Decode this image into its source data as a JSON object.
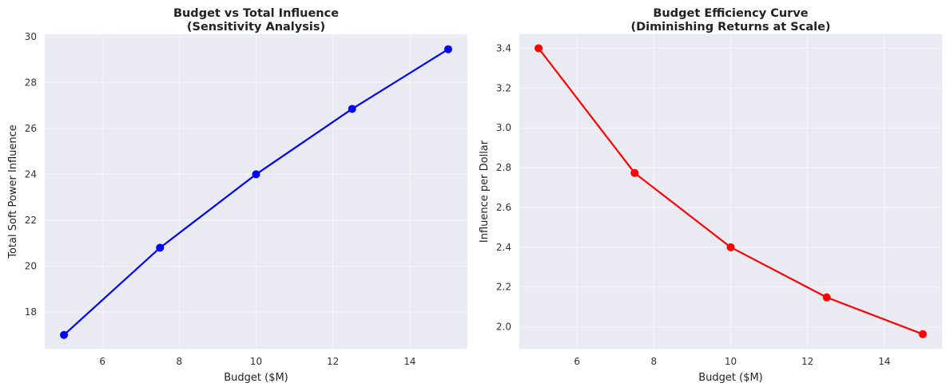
{
  "chart_data": [
    {
      "type": "line",
      "title": [
        "Budget vs Total Influence",
        "(Sensitivity Analysis)"
      ],
      "xlabel": "Budget ($M)",
      "ylabel": "Total Soft Power Influence",
      "x": [
        5,
        7.5,
        10,
        12.5,
        15
      ],
      "series": [
        {
          "values": [
            17.0,
            20.8,
            24.0,
            26.85,
            29.45
          ],
          "color": "#0000ff"
        }
      ],
      "xticks": [
        6,
        8,
        10,
        12,
        14
      ],
      "yticks": [
        18,
        20,
        22,
        24,
        26,
        28,
        30
      ],
      "xlim": [
        4.5,
        15.5
      ],
      "ylim": [
        16.4,
        30.1
      ],
      "grid": true
    },
    {
      "type": "line",
      "title": [
        "Budget Efficiency Curve",
        "(Diminishing Returns at Scale)"
      ],
      "xlabel": "Budget ($M)",
      "ylabel": "Influence per Dollar",
      "x": [
        5,
        7.5,
        10,
        12.5,
        15
      ],
      "series": [
        {
          "values": [
            3.4,
            2.773,
            2.4,
            2.148,
            1.963
          ],
          "color": "#ff0000"
        }
      ],
      "xticks": [
        6,
        8,
        10,
        12,
        14
      ],
      "yticks": [
        2.0,
        2.2,
        2.4,
        2.6,
        2.8,
        3.0,
        3.2,
        3.4
      ],
      "yticks_labels": [
        "2.0",
        "2.2",
        "2.4",
        "2.6",
        "2.8",
        "3.0",
        "3.2",
        "3.4"
      ],
      "xlim": [
        4.5,
        15.5
      ],
      "ylim": [
        1.89,
        3.47
      ],
      "grid": true
    }
  ]
}
